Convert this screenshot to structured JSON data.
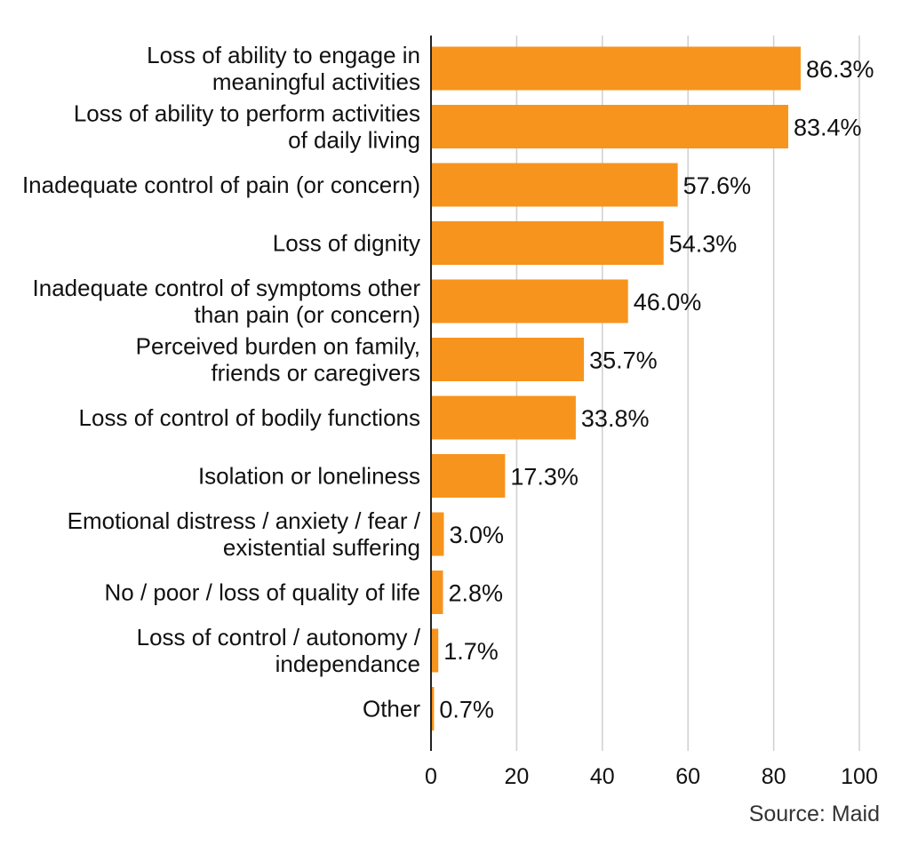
{
  "chart_data": {
    "type": "bar",
    "orientation": "horizontal",
    "categories": [
      [
        "Loss of ability to engage in",
        "meaningful activities"
      ],
      [
        "Loss of ability to perform activities",
        "of daily living"
      ],
      [
        "Inadequate control of pain (or concern)"
      ],
      [
        "Loss of dignity"
      ],
      [
        "Inadequate control of symptoms other",
        "than pain (or concern)"
      ],
      [
        "Perceived burden on family,",
        "friends or caregivers"
      ],
      [
        "Loss of control of bodily functions"
      ],
      [
        "Isolation or loneliness"
      ],
      [
        "Emotional distress / anxiety / fear /",
        "existential suffering"
      ],
      [
        "No / poor / loss of quality of life"
      ],
      [
        "Loss of control / autonomy /",
        "independance"
      ],
      [
        "Other"
      ]
    ],
    "values": [
      86.3,
      83.4,
      57.6,
      54.3,
      46.0,
      35.7,
      33.8,
      17.3,
      3.0,
      2.8,
      1.7,
      0.7
    ],
    "value_labels": [
      "86.3%",
      "83.4%",
      "57.6%",
      "54.3%",
      "46.0%",
      "35.7%",
      "33.8%",
      "17.3%",
      "3.0%",
      "2.8%",
      "1.7%",
      "0.7%"
    ],
    "xlim": [
      0,
      100
    ],
    "xticks": [
      0,
      20,
      40,
      60,
      80,
      100
    ],
    "grid": true,
    "bar_color": "#F7941D",
    "title": "",
    "xlabel": "",
    "ylabel": ""
  },
  "source": "Source: Maid"
}
